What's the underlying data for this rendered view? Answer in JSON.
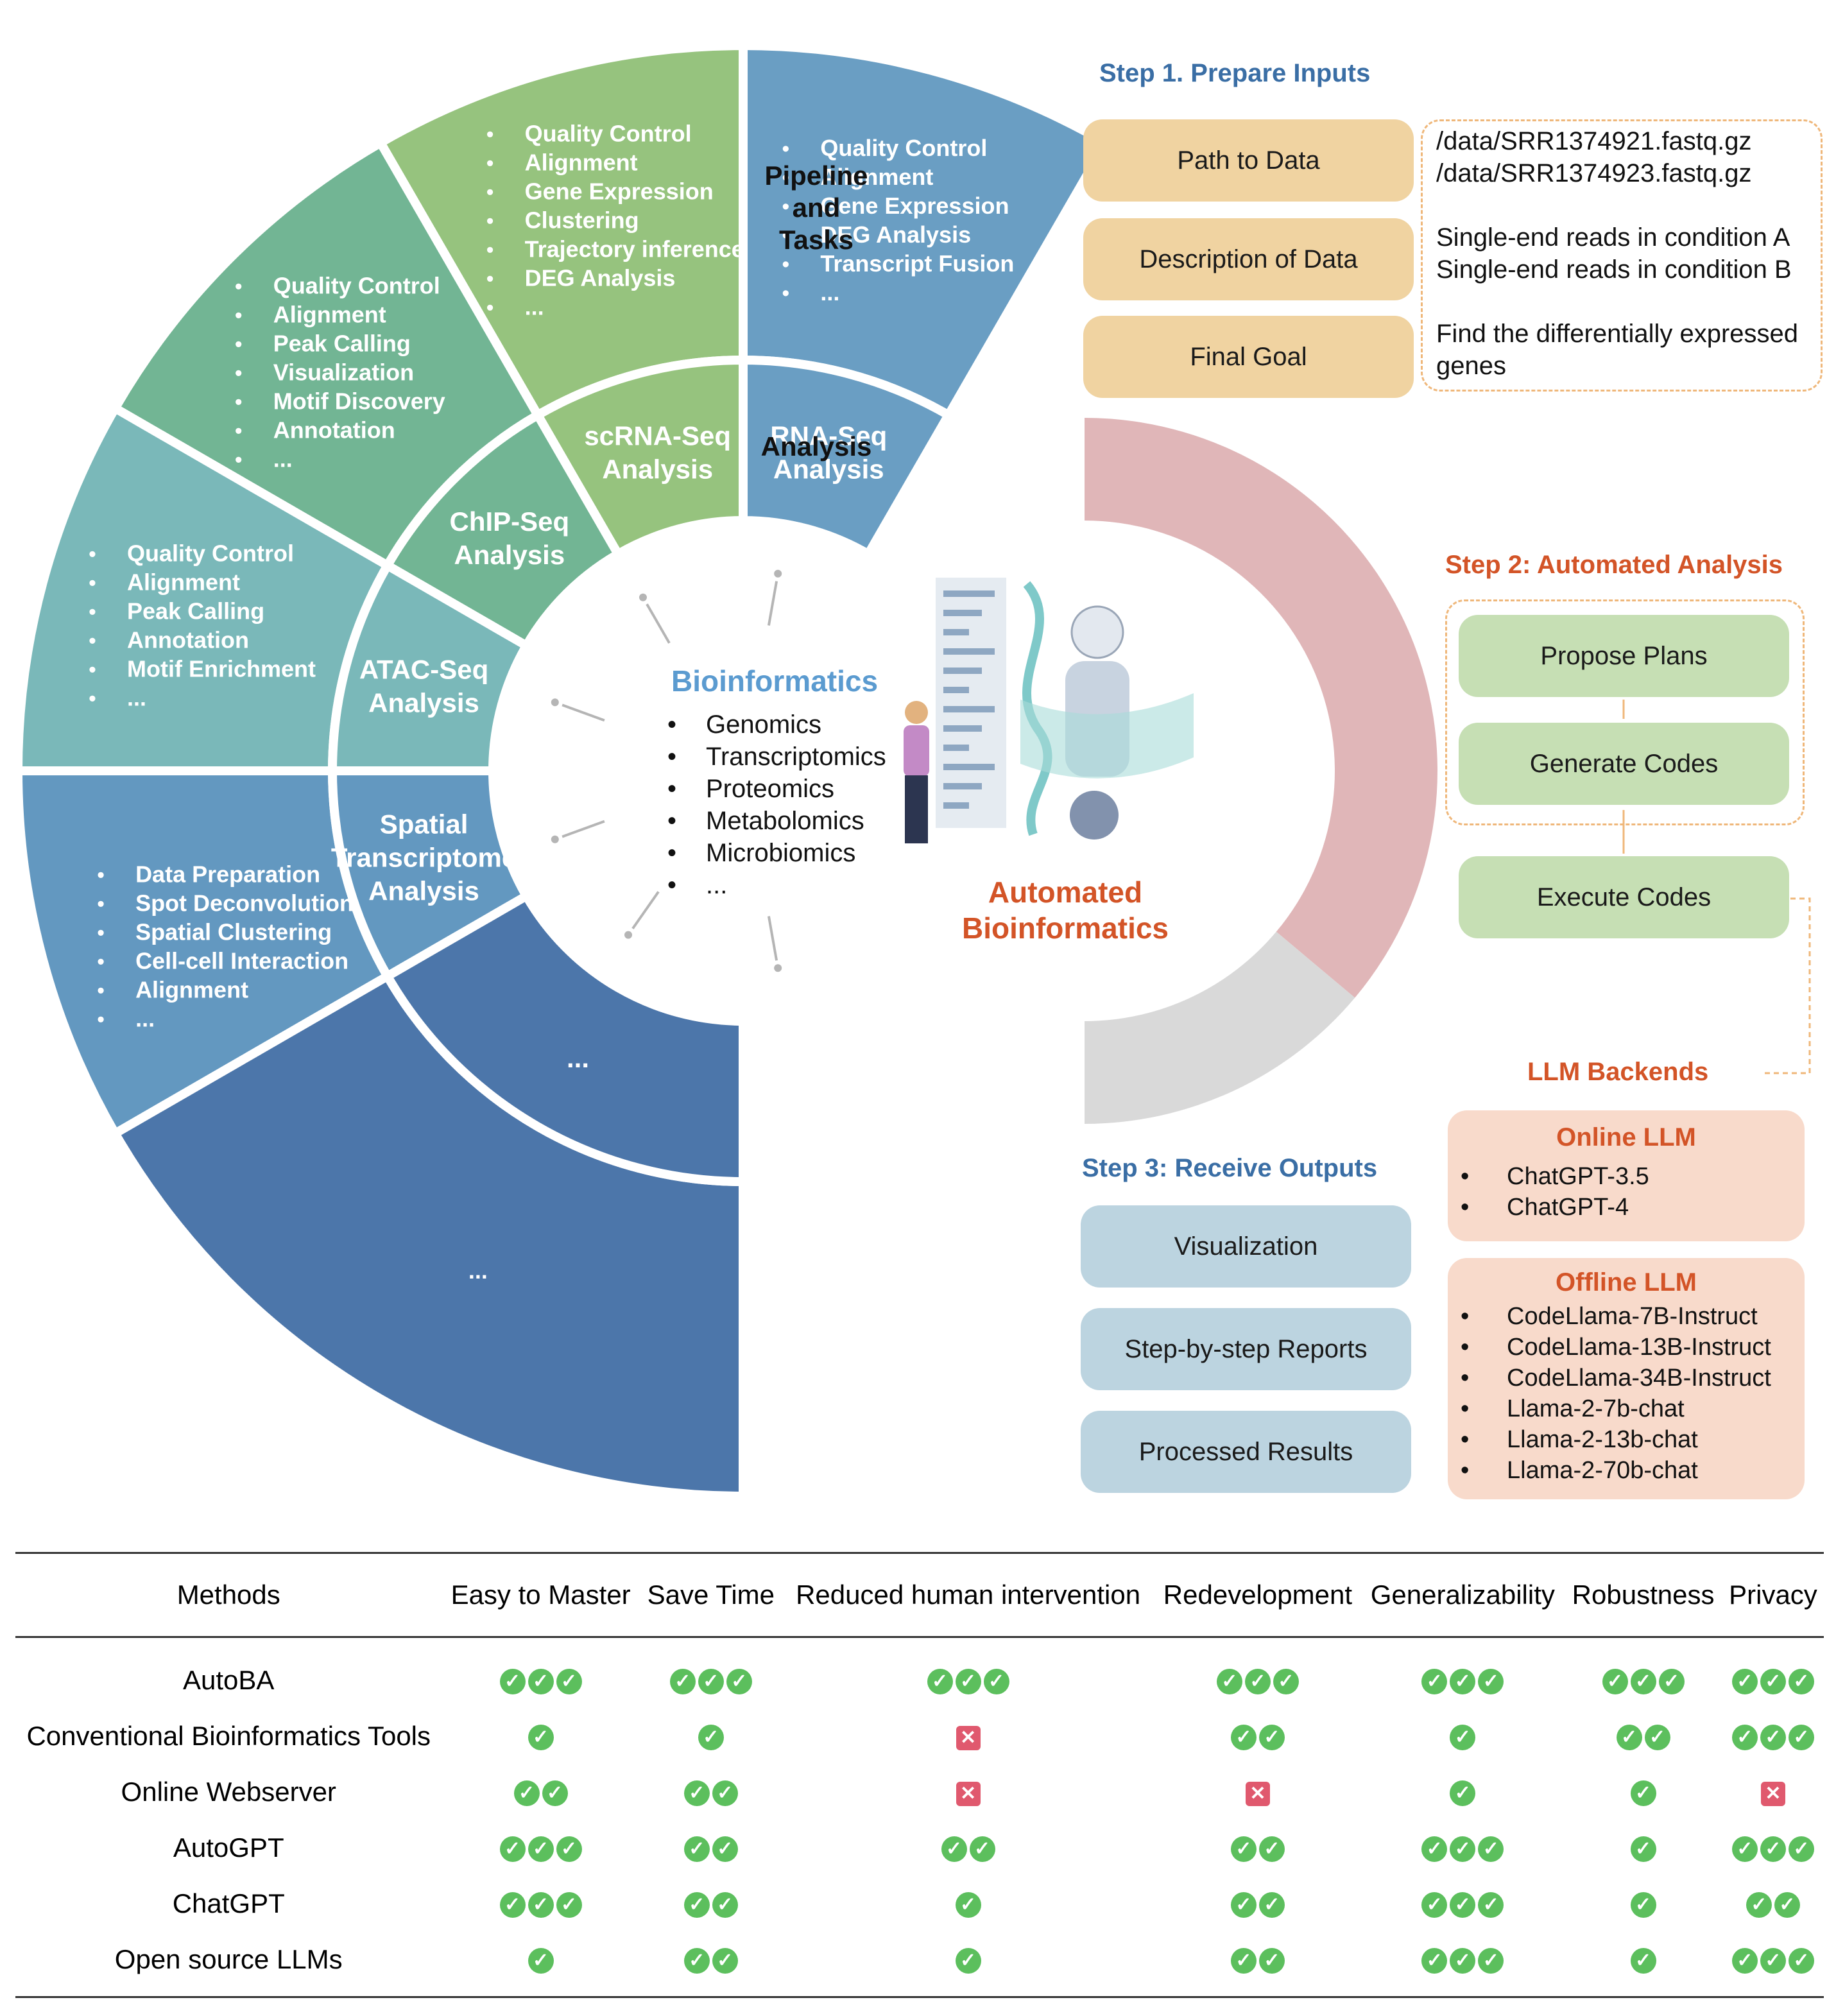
{
  "wheel": {
    "center_title": "Bioinformatics",
    "omics": [
      "Genomics",
      "Transcriptomics",
      "Proteomics",
      "Metabolomics",
      "Microbiomics",
      "..."
    ],
    "ring_labels": {
      "outer": "Pipeline and Tasks",
      "inner": "Analysis"
    },
    "analyses": [
      {
        "inner": [
          "RNA-Seq",
          "Analysis"
        ],
        "tasks": [
          "Quality Control",
          "Alignment",
          "Gene Expression",
          "DEG Analysis",
          "Transcript Fusion",
          "..."
        ],
        "color": "#6a9ec3"
      },
      {
        "inner": [
          "scRNA-Seq",
          "Analysis"
        ],
        "tasks": [
          "Quality Control",
          "Alignment",
          "Gene Expression",
          "Clustering",
          "Trajectory inference",
          "DEG Analysis",
          "..."
        ],
        "color": "#96c37e"
      },
      {
        "inner": [
          "ChIP-Seq",
          "Analysis"
        ],
        "tasks": [
          "Quality Control",
          "Alignment",
          "Peak Calling",
          "Visualization",
          "Motif Discovery",
          "Annotation",
          "..."
        ],
        "color": "#72b594"
      },
      {
        "inner": [
          "ATAC-Seq",
          "Analysis"
        ],
        "tasks": [
          "Quality Control",
          "Alignment",
          "Peak Calling",
          "Annotation",
          "Motif Enrichment",
          "..."
        ],
        "color": "#7ab8b9"
      },
      {
        "inner": [
          "Spatial",
          "Transcriptome",
          "Analysis"
        ],
        "tasks": [
          "Data Preparation",
          "Spot Deconvolution",
          "Spatial Clustering",
          "Cell-cell Interaction",
          "Alignment",
          "..."
        ],
        "color": "#6398c0"
      },
      {
        "inner": [
          "..."
        ],
        "tasks": [
          "..."
        ],
        "color": "#4c76aa"
      }
    ]
  },
  "automated": {
    "title_line1": "Automated",
    "title_line2": "Bioinformatics",
    "color": "#d35427"
  },
  "step1": {
    "title": "Step 1. Prepare Inputs",
    "inputs": [
      "Path to Data",
      "Description of Data",
      "Final Goal"
    ],
    "details": [
      [
        "/data/SRR1374921.fastq.gz",
        "/data/SRR1374923.fastq.gz"
      ],
      [
        "Single-end reads in condition A",
        "Single-end reads in condition B"
      ],
      [
        "Find the differentially expressed",
        "genes"
      ]
    ]
  },
  "step2": {
    "title": "Step 2: Automated Analysis",
    "boxes": [
      "Propose Plans",
      "Generate Codes",
      "Execute Codes"
    ]
  },
  "backends": {
    "title": "LLM Backends",
    "online": {
      "title": "Online LLM",
      "items": [
        "ChatGPT-3.5",
        "ChatGPT-4"
      ]
    },
    "offline": {
      "title": "Offline LLM",
      "items": [
        "CodeLlama-7B-Instruct",
        "CodeLlama-13B-Instruct",
        "CodeLlama-34B-Instruct",
        "Llama-2-7b-chat",
        "Llama-2-13b-chat",
        "Llama-2-70b-chat"
      ]
    }
  },
  "step3": {
    "title": "Step 3: Receive Outputs",
    "boxes": [
      "Visualization",
      "Step-by-step Reports",
      "Processed Results"
    ]
  },
  "comparison": {
    "headers": [
      "Methods",
      "Easy to Master",
      "Save Time",
      "Reduced human intervention",
      "Redevelopment",
      "Generalizability",
      "Robustness",
      "Privacy"
    ],
    "rows": [
      {
        "method": "AutoBA",
        "scores": [
          3,
          3,
          3,
          3,
          3,
          3,
          3
        ]
      },
      {
        "method": "Conventional Bioinformatics Tools",
        "scores": [
          1,
          1,
          0,
          2,
          1,
          2,
          3
        ]
      },
      {
        "method": "Online Webserver",
        "scores": [
          2,
          2,
          0,
          0,
          1,
          1,
          0
        ]
      },
      {
        "method": "AutoGPT",
        "scores": [
          3,
          2,
          2,
          2,
          3,
          1,
          3
        ]
      },
      {
        "method": "ChatGPT",
        "scores": [
          3,
          2,
          1,
          2,
          3,
          1,
          2
        ]
      },
      {
        "method": "Open source LLMs",
        "scores": [
          1,
          2,
          1,
          2,
          3,
          1,
          3
        ]
      }
    ]
  },
  "colors": {
    "step_blue": "#3a6ea5",
    "step_red": "#d35427",
    "check": "#5cbf5d",
    "cross": "#e0596e"
  }
}
